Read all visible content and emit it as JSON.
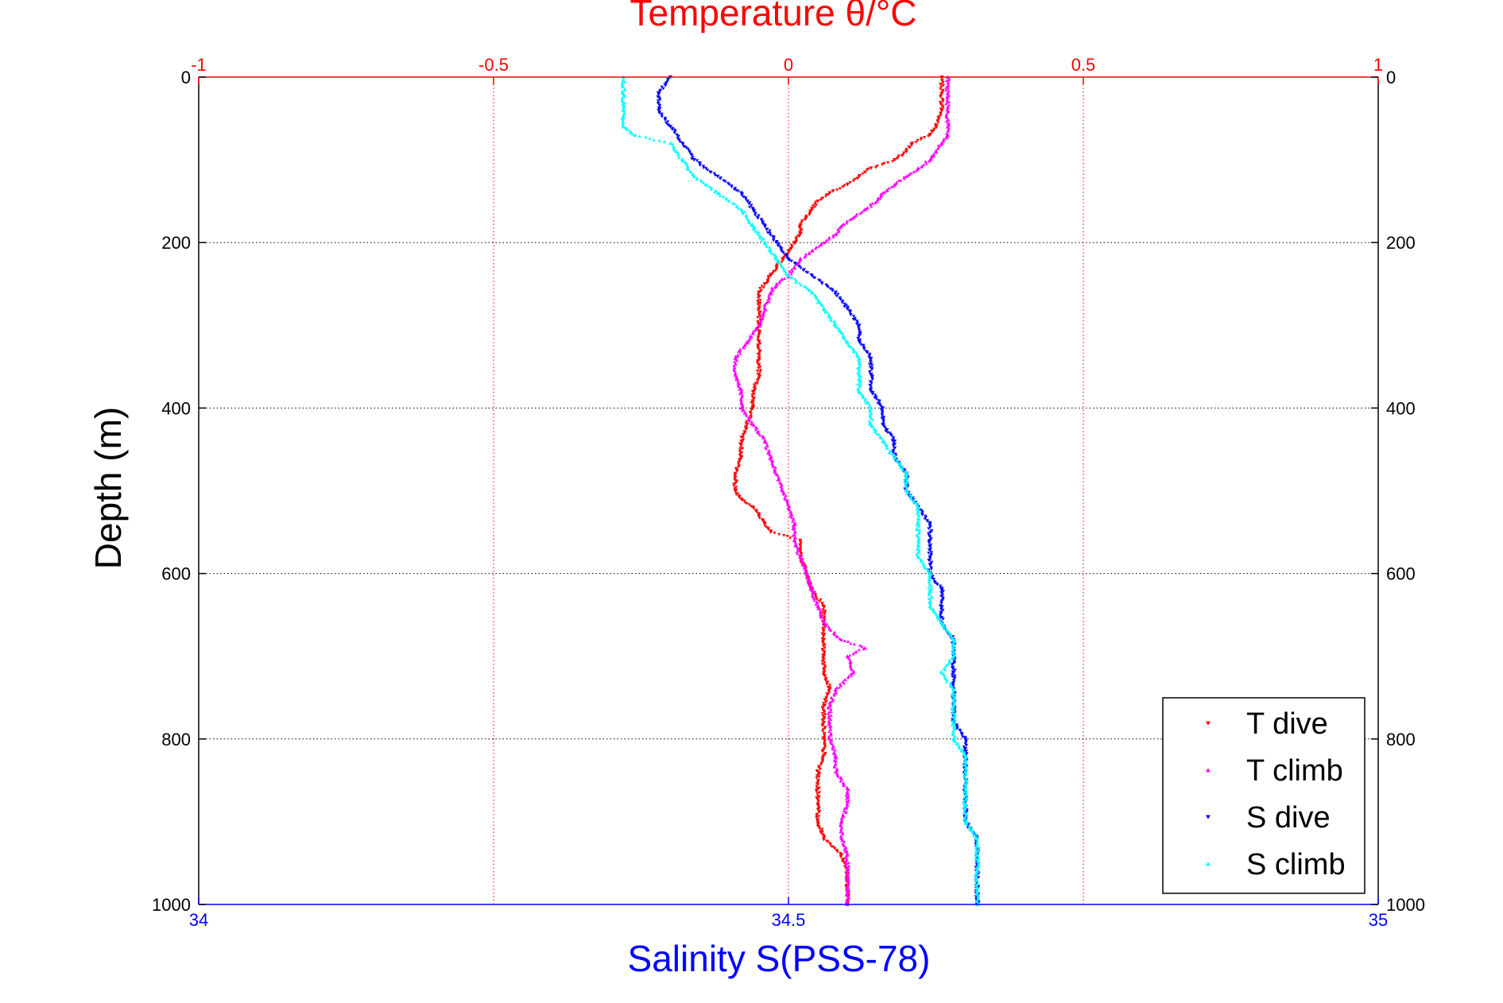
{
  "chart_data": {
    "type": "scatter",
    "title": "Temperature θ/°C",
    "xlabel": "Salinity S(PSS-78)",
    "ylabel": "Depth (m)",
    "top_axis": {
      "label": "Temperature θ/°C",
      "lim": [
        -1,
        1
      ],
      "ticks": [
        "-1",
        "-0.5",
        "0",
        "0.5",
        "1"
      ],
      "color": "#ff0000"
    },
    "bottom_axis": {
      "label": "Salinity S(PSS-78)",
      "lim": [
        34,
        35
      ],
      "ticks": [
        "34",
        "34.5",
        "35"
      ],
      "color": "#0000ff"
    },
    "y_axis": {
      "label": "Depth (m)",
      "lim": [
        0,
        1000
      ],
      "reversed": true,
      "ticks": [
        "0",
        "200",
        "400",
        "600",
        "800",
        "1000"
      ]
    },
    "grid": true,
    "legend": {
      "position": "bottom-right",
      "entries": [
        "T dive",
        "T climb",
        "S dive",
        "S climb"
      ]
    },
    "series": [
      {
        "name": "T dive",
        "axis": "top",
        "color": "#ff0000",
        "marker": "triangle-down",
        "depth": [
          0,
          20,
          40,
          60,
          70,
          80,
          90,
          100,
          110,
          120,
          130,
          140,
          150,
          160,
          170,
          180,
          190,
          200,
          210,
          220,
          230,
          240,
          250,
          260,
          280,
          300,
          320,
          340,
          360,
          380,
          400,
          420,
          440,
          460,
          480,
          500,
          510,
          520,
          530,
          540,
          550,
          560,
          580,
          600,
          620,
          640,
          660,
          680,
          700,
          720,
          740,
          760,
          780,
          800,
          820,
          840,
          860,
          880,
          900,
          920,
          940,
          960,
          980,
          1000
        ],
        "values": [
          0.26,
          0.26,
          0.26,
          0.25,
          0.24,
          0.21,
          0.2,
          0.18,
          0.14,
          0.12,
          0.1,
          0.07,
          0.05,
          0.04,
          0.03,
          0.02,
          0.02,
          0.01,
          0.0,
          -0.01,
          -0.02,
          -0.03,
          -0.04,
          -0.05,
          -0.05,
          -0.05,
          -0.05,
          -0.05,
          -0.05,
          -0.06,
          -0.06,
          -0.07,
          -0.08,
          -0.08,
          -0.09,
          -0.09,
          -0.08,
          -0.06,
          -0.05,
          -0.04,
          -0.03,
          0.02,
          0.02,
          0.03,
          0.04,
          0.06,
          0.06,
          0.06,
          0.06,
          0.06,
          0.07,
          0.06,
          0.06,
          0.06,
          0.06,
          0.05,
          0.05,
          0.05,
          0.05,
          0.06,
          0.09,
          0.1,
          0.1,
          0.1
        ]
      },
      {
        "name": "T climb",
        "axis": "top",
        "color": "#ff00ff",
        "marker": "triangle-up",
        "depth": [
          0,
          20,
          40,
          60,
          70,
          80,
          90,
          100,
          110,
          120,
          130,
          140,
          150,
          160,
          170,
          180,
          190,
          200,
          210,
          220,
          230,
          240,
          250,
          260,
          280,
          300,
          320,
          340,
          360,
          380,
          400,
          420,
          440,
          460,
          480,
          500,
          520,
          540,
          560,
          580,
          600,
          620,
          640,
          660,
          680,
          690,
          700,
          720,
          740,
          760,
          780,
          800,
          820,
          840,
          860,
          880,
          900,
          920,
          940,
          960,
          980,
          1000
        ],
        "values": [
          0.27,
          0.27,
          0.27,
          0.27,
          0.27,
          0.26,
          0.25,
          0.24,
          0.22,
          0.2,
          0.18,
          0.16,
          0.15,
          0.13,
          0.11,
          0.09,
          0.08,
          0.06,
          0.04,
          0.02,
          0.01,
          0.0,
          -0.02,
          -0.03,
          -0.04,
          -0.05,
          -0.07,
          -0.09,
          -0.09,
          -0.08,
          -0.08,
          -0.06,
          -0.04,
          -0.03,
          -0.02,
          -0.01,
          0.0,
          0.01,
          0.01,
          0.02,
          0.03,
          0.04,
          0.05,
          0.06,
          0.09,
          0.13,
          0.1,
          0.11,
          0.08,
          0.07,
          0.07,
          0.07,
          0.08,
          0.08,
          0.1,
          0.1,
          0.09,
          0.09,
          0.1,
          0.1,
          0.1,
          0.1
        ]
      },
      {
        "name": "S dive",
        "axis": "bottom",
        "color": "#0000ff",
        "marker": "triangle-down",
        "depth": [
          0,
          20,
          40,
          60,
          80,
          100,
          120,
          140,
          160,
          180,
          200,
          220,
          240,
          260,
          280,
          300,
          320,
          340,
          360,
          380,
          400,
          420,
          440,
          460,
          480,
          500,
          520,
          540,
          560,
          580,
          600,
          620,
          640,
          660,
          680,
          700,
          720,
          740,
          760,
          780,
          800,
          820,
          840,
          860,
          880,
          900,
          920,
          940,
          960,
          980,
          1000
        ],
        "values": [
          34.4,
          34.39,
          34.39,
          34.4,
          34.41,
          34.42,
          34.44,
          34.46,
          34.47,
          34.48,
          34.49,
          34.5,
          34.52,
          34.54,
          34.55,
          34.56,
          34.56,
          34.57,
          34.57,
          34.57,
          34.58,
          34.58,
          34.59,
          34.59,
          34.6,
          34.6,
          34.61,
          34.62,
          34.62,
          34.62,
          34.62,
          34.63,
          34.63,
          34.63,
          34.64,
          34.64,
          34.64,
          34.64,
          34.64,
          34.64,
          34.65,
          34.65,
          34.65,
          34.65,
          34.65,
          34.65,
          34.66,
          34.66,
          34.66,
          34.66,
          34.66
        ]
      },
      {
        "name": "S climb",
        "axis": "bottom",
        "color": "#00ffff",
        "marker": "triangle-up",
        "depth": [
          0,
          20,
          40,
          60,
          70,
          80,
          100,
          120,
          140,
          160,
          180,
          200,
          220,
          240,
          260,
          280,
          300,
          320,
          340,
          360,
          380,
          400,
          420,
          440,
          460,
          480,
          500,
          520,
          540,
          560,
          580,
          600,
          620,
          640,
          660,
          680,
          700,
          720,
          740,
          760,
          780,
          800,
          820,
          840,
          860,
          880,
          900,
          920,
          940,
          960,
          980,
          1000
        ],
        "values": [
          34.36,
          34.36,
          34.36,
          34.36,
          34.37,
          34.4,
          34.41,
          34.42,
          34.44,
          34.46,
          34.47,
          34.48,
          34.49,
          34.5,
          34.52,
          34.53,
          34.54,
          34.55,
          34.56,
          34.56,
          34.56,
          34.57,
          34.57,
          34.58,
          34.59,
          34.6,
          34.6,
          34.61,
          34.61,
          34.61,
          34.61,
          34.62,
          34.62,
          34.62,
          34.63,
          34.64,
          34.64,
          34.63,
          34.64,
          34.64,
          34.64,
          34.64,
          34.65,
          34.65,
          34.65,
          34.65,
          34.65,
          34.66,
          34.66,
          34.66,
          34.66,
          34.66
        ]
      }
    ]
  }
}
